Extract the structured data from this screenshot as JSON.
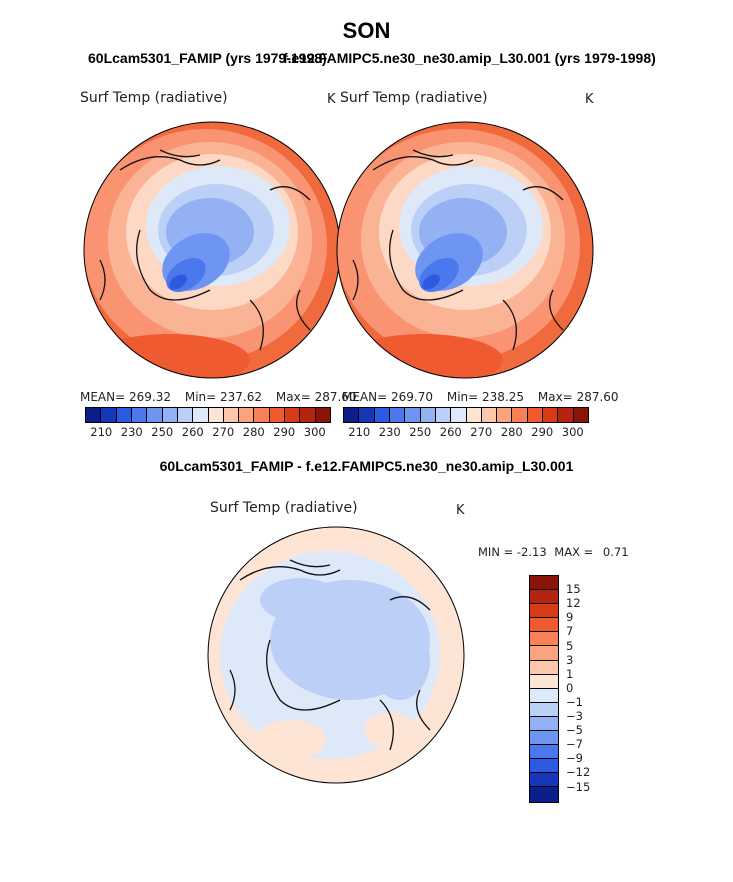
{
  "page": {
    "season": "SON",
    "case1": "60Lcam5301_FAMIP (yrs 1979-1998)",
    "case2": "f.e12.FAMIPC5.ne30_ne30.amip_L30.001 (yrs 1979-1998)",
    "diff_title": "60Lcam5301_FAMIP - f.e12.FAMIPC5.ne30_ne30.amip_L30.001"
  },
  "panels": [
    {
      "title": "Surf Temp (radiative)",
      "unit": "K",
      "mean_label": "MEAN=",
      "mean": "269.32",
      "min_label": "Min=",
      "min": "237.62",
      "max_label": "Max=",
      "max": "287.60"
    },
    {
      "title": "Surf Temp (radiative)",
      "unit": "K",
      "mean_label": "MEAN=",
      "mean": "269.70",
      "min_label": "Min=",
      "min": "238.25",
      "max_label": "Max=",
      "max": "287.60"
    }
  ],
  "diff_panel": {
    "title": "Surf Temp (radiative)",
    "unit": "K",
    "min_label": "MIN =",
    "min": "-2.13",
    "max_label": "MAX =",
    "max": "0.71"
  },
  "colorbar_abs": {
    "colors": [
      "#0a1f8a",
      "#1537b8",
      "#2c5ae0",
      "#4c78ee",
      "#6f95f2",
      "#94b1f4",
      "#bcd0f7",
      "#dde8f8",
      "#fde4d4",
      "#fcc7a8",
      "#fba37e",
      "#f97f56",
      "#f05a30",
      "#d93b16",
      "#b52410",
      "#8a1408"
    ],
    "labels": [
      "210",
      "230",
      "250",
      "260",
      "270",
      "280",
      "290",
      "300"
    ]
  },
  "colorbar_diff": {
    "colors": [
      "#8a1408",
      "#b52410",
      "#d93b16",
      "#f05a30",
      "#f97f56",
      "#fba37e",
      "#fcc7a8",
      "#fde4d4",
      "#dde8f8",
      "#bcd0f7",
      "#94b1f4",
      "#6f95f2",
      "#4c78ee",
      "#2c5ae0",
      "#1537b8",
      "#0a1f8a"
    ],
    "labels": [
      "15",
      "12",
      "9",
      "7",
      "5",
      "3",
      "1",
      "0",
      "−1",
      "−3",
      "−5",
      "−7",
      "−9",
      "−12",
      "−15"
    ]
  }
}
